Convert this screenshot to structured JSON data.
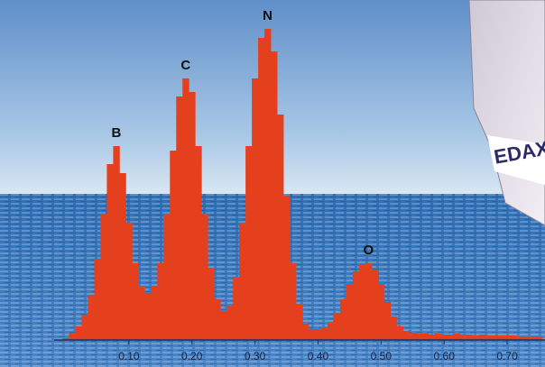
{
  "chart_data": {
    "type": "bar",
    "x": [
      0.0,
      0.01,
      0.02,
      0.03,
      0.04,
      0.05,
      0.06,
      0.07,
      0.08,
      0.09,
      0.1,
      0.11,
      0.12,
      0.13,
      0.14,
      0.15,
      0.16,
      0.17,
      0.18,
      0.19,
      0.2,
      0.21,
      0.22,
      0.23,
      0.24,
      0.25,
      0.26,
      0.27,
      0.28,
      0.29,
      0.3,
      0.31,
      0.32,
      0.33,
      0.34,
      0.35,
      0.36,
      0.37,
      0.38,
      0.39,
      0.4,
      0.41,
      0.42,
      0.43,
      0.44,
      0.45,
      0.46,
      0.47,
      0.48,
      0.49,
      0.5,
      0.51,
      0.52,
      0.53,
      0.54,
      0.55,
      0.56,
      0.57,
      0.58,
      0.59,
      0.6,
      0.61,
      0.62,
      0.63,
      0.64,
      0.65,
      0.66,
      0.67,
      0.68,
      0.69,
      0.7,
      0.71,
      0.72,
      0.73,
      0.74,
      0.75
    ],
    "values": [
      2,
      8,
      15,
      28,
      50,
      90,
      140,
      195,
      215,
      185,
      130,
      85,
      60,
      52,
      60,
      85,
      140,
      210,
      270,
      290,
      275,
      215,
      140,
      80,
      45,
      32,
      38,
      70,
      130,
      215,
      290,
      335,
      345,
      320,
      250,
      160,
      85,
      40,
      18,
      12,
      12,
      14,
      20,
      30,
      45,
      62,
      76,
      84,
      85,
      78,
      62,
      42,
      26,
      15,
      10,
      8,
      7,
      7,
      6,
      7,
      6,
      6,
      7,
      6,
      6,
      5,
      6,
      5,
      5,
      5,
      5,
      5,
      4,
      4,
      4,
      4
    ],
    "color": "#e5401d",
    "xlim": [
      0,
      0.76
    ],
    "xticks": [
      {
        "value": 0.1,
        "label": "0.10"
      },
      {
        "value": 0.2,
        "label": "0.20"
      },
      {
        "value": 0.3,
        "label": "0.30"
      },
      {
        "value": 0.4,
        "label": "0.40"
      },
      {
        "value": 0.5,
        "label": "0.50"
      },
      {
        "value": 0.6,
        "label": "0.60"
      },
      {
        "value": 0.7,
        "label": "0.70"
      }
    ],
    "annotations": [
      {
        "text": "B",
        "x": 0.08
      },
      {
        "text": "C",
        "x": 0.19
      },
      {
        "text": "N",
        "x": 0.32
      },
      {
        "text": "O",
        "x": 0.48
      }
    ]
  },
  "logo": "EDAX"
}
